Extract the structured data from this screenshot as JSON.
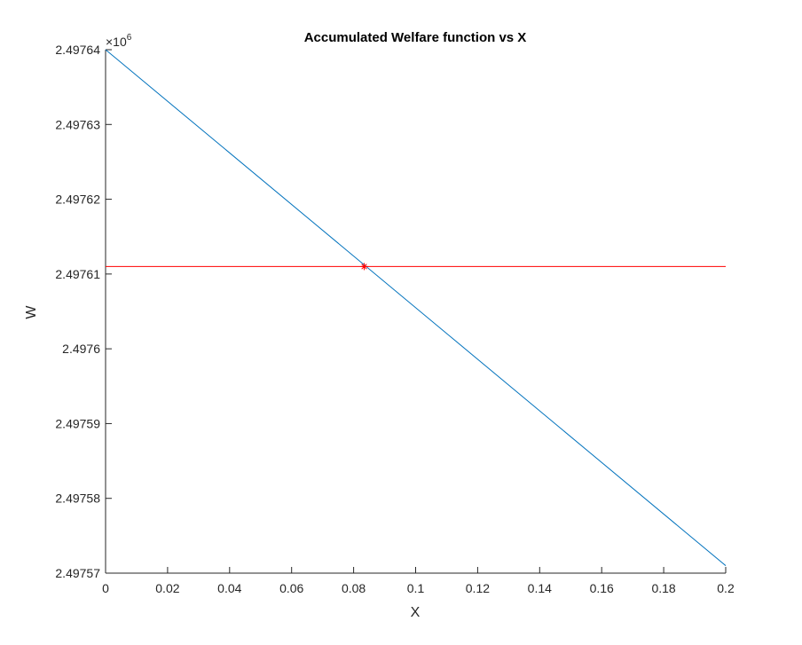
{
  "chart_data": {
    "type": "line",
    "title": "Accumulated Welfare function vs X",
    "xlabel": "X",
    "ylabel": "W",
    "xlim": [
      0,
      0.2
    ],
    "ylim": [
      2.49757,
      2.49764
    ],
    "y_multiplier": {
      "base": "×10",
      "exponent": "6"
    },
    "xticks": [
      0,
      0.02,
      0.04,
      0.06,
      0.08,
      0.1,
      0.12,
      0.14,
      0.16,
      0.18,
      0.2
    ],
    "xtick_labels": [
      "0",
      "0.02",
      "0.04",
      "0.06",
      "0.08",
      "0.1",
      "0.12",
      "0.14",
      "0.16",
      "0.18",
      "0.2"
    ],
    "yticks": [
      2.49757,
      2.49758,
      2.49759,
      2.4976,
      2.49761,
      2.49762,
      2.49763,
      2.49764
    ],
    "ytick_labels": [
      "2.49757",
      "2.49758",
      "2.49759",
      "2.4976",
      "2.49761",
      "2.49762",
      "2.49763",
      "2.49764"
    ],
    "grid": false,
    "series": [
      {
        "color": "#0072BD",
        "x": [
          0,
          0.2
        ],
        "y": [
          2.49764,
          2.497571
        ]
      },
      {
        "color": "#FF0000",
        "x": [
          0,
          0.2
        ],
        "y": [
          2.497611,
          2.497611
        ]
      }
    ],
    "markers": [
      {
        "x": 0.0834,
        "y": 2.497611,
        "symbol": "*",
        "color": "#FF0000"
      }
    ]
  }
}
